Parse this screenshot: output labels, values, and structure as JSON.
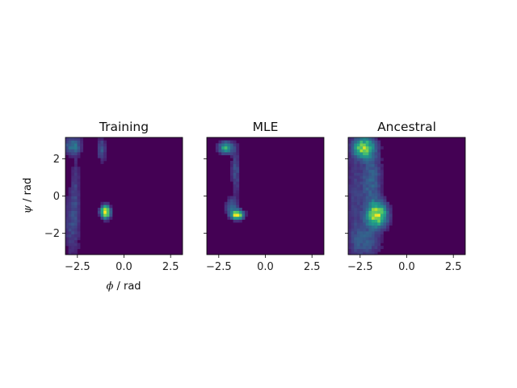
{
  "chart_data": {
    "type": "heatmap",
    "xlabel_symbol": "ϕ",
    "xlabel_unit": " / rad",
    "ylabel_symbol": "ψ",
    "ylabel_unit": " / rad",
    "xlim": [
      -3.14159,
      3.14159
    ],
    "ylim": [
      -3.14159,
      3.14159
    ],
    "xticks": [
      -2.5,
      0.0,
      2.5
    ],
    "xtick_labels": [
      "−2.5",
      "0.0",
      "2.5"
    ],
    "yticks": [
      -2,
      0,
      2
    ],
    "ytick_labels": [
      "−2",
      "0",
      "2"
    ],
    "colormap": "viridis",
    "background_color": "#440154",
    "bins": 40,
    "panels": [
      {
        "title": "Training",
        "blobs": [
          {
            "x": -1.0,
            "y": -0.85,
            "sx": 0.15,
            "sy": 0.2,
            "w": 1.0
          },
          {
            "x": -2.75,
            "y": 2.7,
            "sx": 0.3,
            "sy": 0.3,
            "w": 0.22
          },
          {
            "x": -1.2,
            "y": 2.5,
            "sx": 0.15,
            "sy": 0.4,
            "w": 0.14
          },
          {
            "x": -2.8,
            "y": -1.5,
            "sx": 0.3,
            "sy": 1.2,
            "w": 0.1
          },
          {
            "x": -2.6,
            "y": 0.5,
            "sx": 0.15,
            "sy": 1.2,
            "w": 0.07
          }
        ]
      },
      {
        "title": "MLE",
        "blobs": [
          {
            "x": -1.5,
            "y": -1.0,
            "sx": 0.2,
            "sy": 0.15,
            "w": 1.0
          },
          {
            "x": -2.1,
            "y": 2.6,
            "sx": 0.25,
            "sy": 0.2,
            "w": 0.5
          },
          {
            "x": -1.6,
            "y": 1.3,
            "sx": 0.15,
            "sy": 0.8,
            "w": 0.15
          },
          {
            "x": -1.8,
            "y": -0.6,
            "sx": 0.2,
            "sy": 0.3,
            "w": 0.25
          }
        ]
      },
      {
        "title": "Ancestral",
        "blobs": [
          {
            "x": -1.6,
            "y": -1.0,
            "sx": 0.35,
            "sy": 0.4,
            "w": 1.0
          },
          {
            "x": -2.3,
            "y": 2.6,
            "sx": 0.35,
            "sy": 0.35,
            "w": 0.85
          },
          {
            "x": -1.9,
            "y": 0.8,
            "sx": 0.35,
            "sy": 1.2,
            "w": 0.25
          },
          {
            "x": -2.2,
            "y": -2.4,
            "sx": 0.5,
            "sy": 0.6,
            "w": 0.22
          },
          {
            "x": -2.8,
            "y": 0.0,
            "sx": 0.3,
            "sy": 2.0,
            "w": 0.12
          }
        ]
      }
    ]
  }
}
